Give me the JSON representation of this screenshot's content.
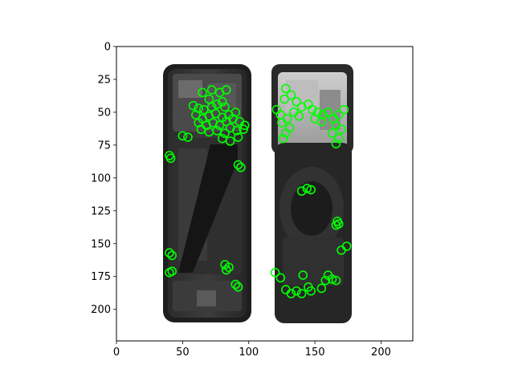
{
  "chart_data": {
    "type": "scatter",
    "title": "",
    "xlabel": "",
    "ylabel": "",
    "xlim": [
      0,
      224
    ],
    "ylim": [
      224,
      0
    ],
    "x_ticks": [
      0,
      50,
      100,
      150,
      200
    ],
    "y_ticks": [
      0,
      25,
      50,
      75,
      100,
      125,
      150,
      175,
      200
    ],
    "grid": false,
    "legend": "none",
    "background_image": "grayscale photo of two disassembled smartphone back halves (internal components, wireless charging coil)",
    "marker": {
      "shape": "circle-outline",
      "color": "#00ff00"
    },
    "series": [
      {
        "points": [
          [
            65,
            35
          ],
          [
            72,
            33
          ],
          [
            78,
            35
          ],
          [
            83,
            33
          ],
          [
            70,
            40
          ],
          [
            80,
            42
          ],
          [
            58,
            45
          ],
          [
            62,
            47
          ],
          [
            66,
            48
          ],
          [
            72,
            46
          ],
          [
            76,
            44
          ],
          [
            82,
            46
          ],
          [
            60,
            52
          ],
          [
            65,
            55
          ],
          [
            70,
            53
          ],
          [
            75,
            51
          ],
          [
            80,
            54
          ],
          [
            85,
            52
          ],
          [
            90,
            50
          ],
          [
            62,
            58
          ],
          [
            68,
            60
          ],
          [
            73,
            58
          ],
          [
            78,
            60
          ],
          [
            83,
            57
          ],
          [
            88,
            55
          ],
          [
            93,
            57
          ],
          [
            97,
            60
          ],
          [
            64,
            63
          ],
          [
            70,
            65
          ],
          [
            76,
            64
          ],
          [
            82,
            66
          ],
          [
            86,
            62
          ],
          [
            91,
            64
          ],
          [
            96,
            63
          ],
          [
            80,
            70
          ],
          [
            86,
            72
          ],
          [
            92,
            69
          ],
          [
            50,
            68
          ],
          [
            54,
            69
          ],
          [
            40,
            83
          ],
          [
            41,
            85
          ],
          [
            92,
            90
          ],
          [
            94,
            92
          ],
          [
            40,
            157
          ],
          [
            42,
            159
          ],
          [
            40,
            172
          ],
          [
            42,
            171
          ],
          [
            82,
            166
          ],
          [
            85,
            168
          ],
          [
            83,
            170
          ],
          [
            90,
            181
          ],
          [
            92,
            183
          ],
          [
            128,
            32
          ],
          [
            132,
            37
          ],
          [
            127,
            40
          ],
          [
            136,
            42
          ],
          [
            140,
            46
          ],
          [
            145,
            44
          ],
          [
            121,
            48
          ],
          [
            124,
            52
          ],
          [
            129,
            55
          ],
          [
            134,
            50
          ],
          [
            138,
            53
          ],
          [
            125,
            58
          ],
          [
            131,
            62
          ],
          [
            128,
            66
          ],
          [
            126,
            70
          ],
          [
            148,
            48
          ],
          [
            152,
            50
          ],
          [
            156,
            52
          ],
          [
            150,
            55
          ],
          [
            155,
            57
          ],
          [
            160,
            50
          ],
          [
            164,
            55
          ],
          [
            168,
            52
          ],
          [
            172,
            48
          ],
          [
            166,
            60
          ],
          [
            170,
            63
          ],
          [
            163,
            66
          ],
          [
            168,
            70
          ],
          [
            166,
            74
          ],
          [
            140,
            110
          ],
          [
            144,
            108
          ],
          [
            147,
            109
          ],
          [
            167,
            133
          ],
          [
            166,
            136
          ],
          [
            168,
            135
          ],
          [
            170,
            155
          ],
          [
            174,
            152
          ],
          [
            120,
            172
          ],
          [
            124,
            176
          ],
          [
            128,
            185
          ],
          [
            132,
            188
          ],
          [
            136,
            186
          ],
          [
            140,
            188
          ],
          [
            141,
            174
          ],
          [
            145,
            183
          ],
          [
            147,
            186
          ],
          [
            155,
            184
          ],
          [
            158,
            178
          ],
          [
            160,
            174
          ],
          [
            163,
            177
          ],
          [
            166,
            178
          ]
        ]
      }
    ]
  }
}
